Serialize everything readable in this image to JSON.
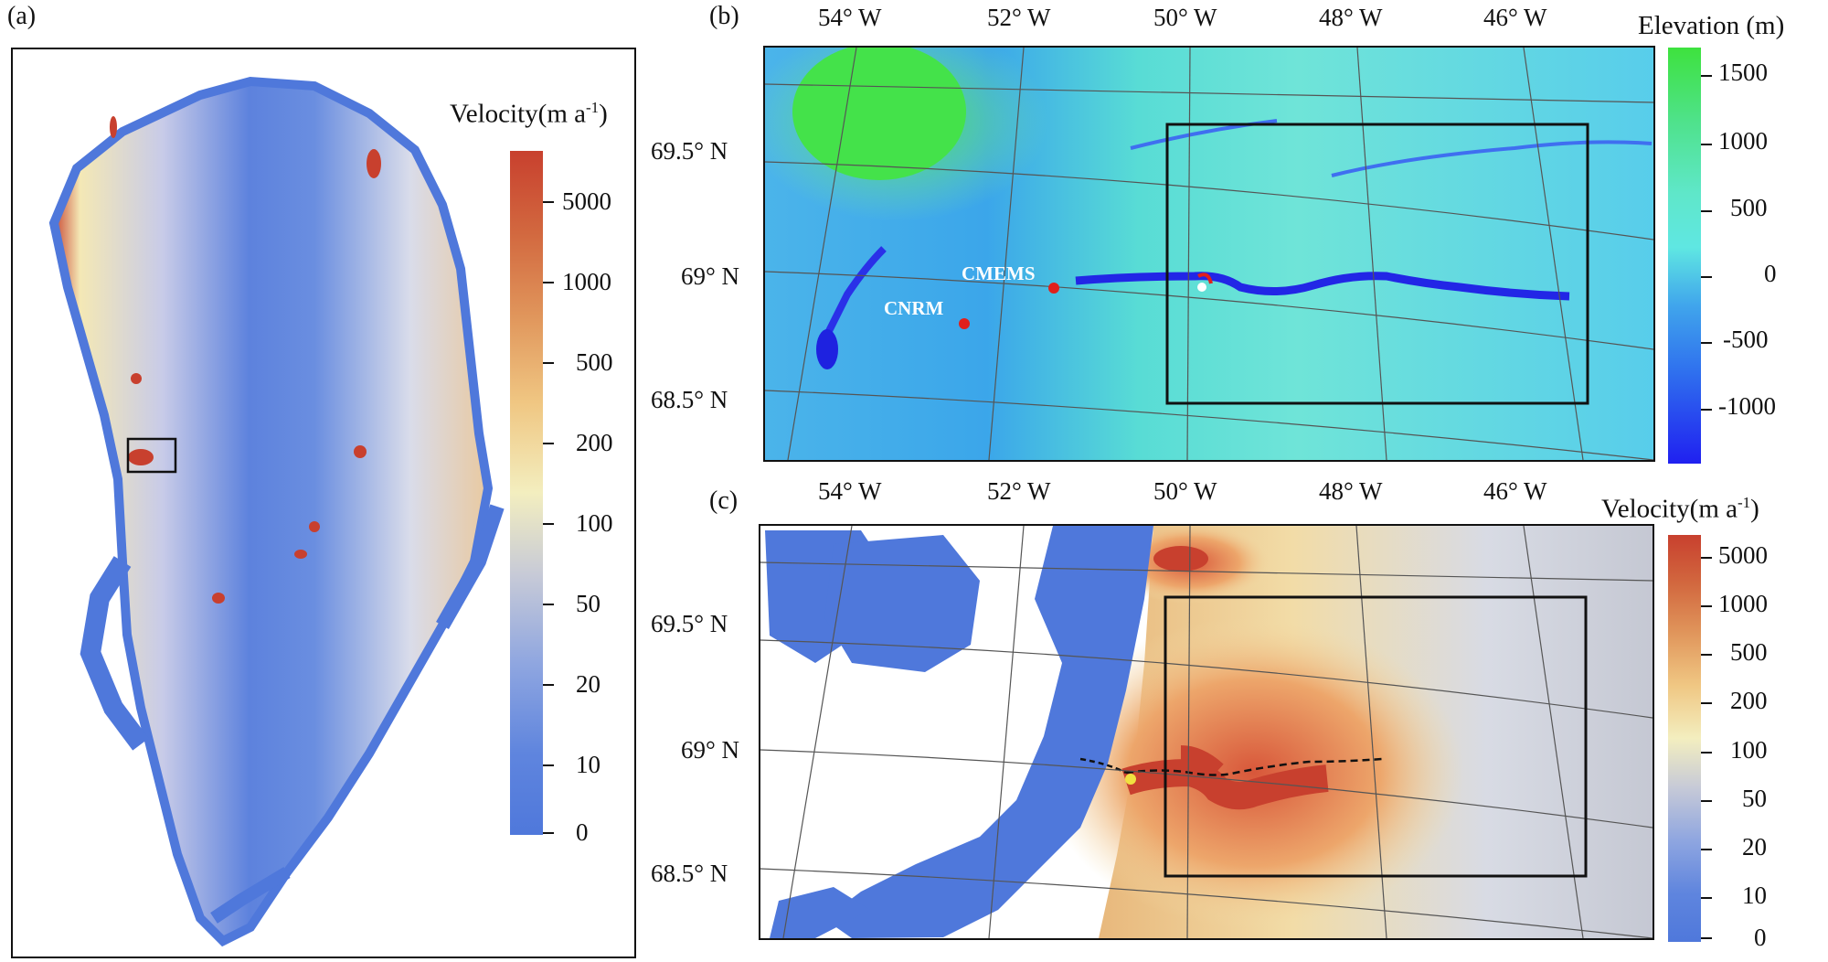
{
  "panel_a": {
    "label": "(a)",
    "colorbar": {
      "title_main": "Velocity",
      "title_unit": "(m a",
      "title_exp": "-1",
      "title_close": ")",
      "ticks": [
        "5000",
        "1000",
        "500",
        "200",
        "100",
        "50",
        "20",
        "10",
        "0"
      ]
    }
  },
  "panel_b": {
    "label": "(b)",
    "lon_labels": [
      "54° W",
      "52° W",
      "50° W",
      "48° W",
      "46° W"
    ],
    "lat_labels": [
      "69.5° N",
      "69° N",
      "68.5° N"
    ],
    "stations": [
      {
        "name": "CMEMS"
      },
      {
        "name": "CNRM"
      }
    ],
    "colorbar": {
      "title": "Elevation (m)",
      "ticks": [
        "1500",
        "1000",
        "500",
        "0",
        "-500",
        "-1000"
      ]
    }
  },
  "panel_c": {
    "label": "(c)",
    "lon_labels": [
      "54° W",
      "52° W",
      "50° W",
      "48° W",
      "46° W"
    ],
    "lat_labels": [
      "69.5° N",
      "69° N",
      "68.5° N"
    ],
    "colorbar": {
      "title_main": "Velocity",
      "title_unit": "(m a",
      "title_exp": "-1",
      "title_close": ")",
      "ticks": [
        "5000",
        "1000",
        "500",
        "200",
        "100",
        "50",
        "20",
        "10",
        "0"
      ]
    }
  },
  "colors": {
    "velocity_low": "#4f78db",
    "velocity_mid": "#f3eebf",
    "velocity_high": "#c8402e",
    "elevation_high": "#3ee23e",
    "elevation_zero": "#5fe7e2",
    "elevation_low": "#2020f0",
    "station_marker": "#e0201c"
  }
}
